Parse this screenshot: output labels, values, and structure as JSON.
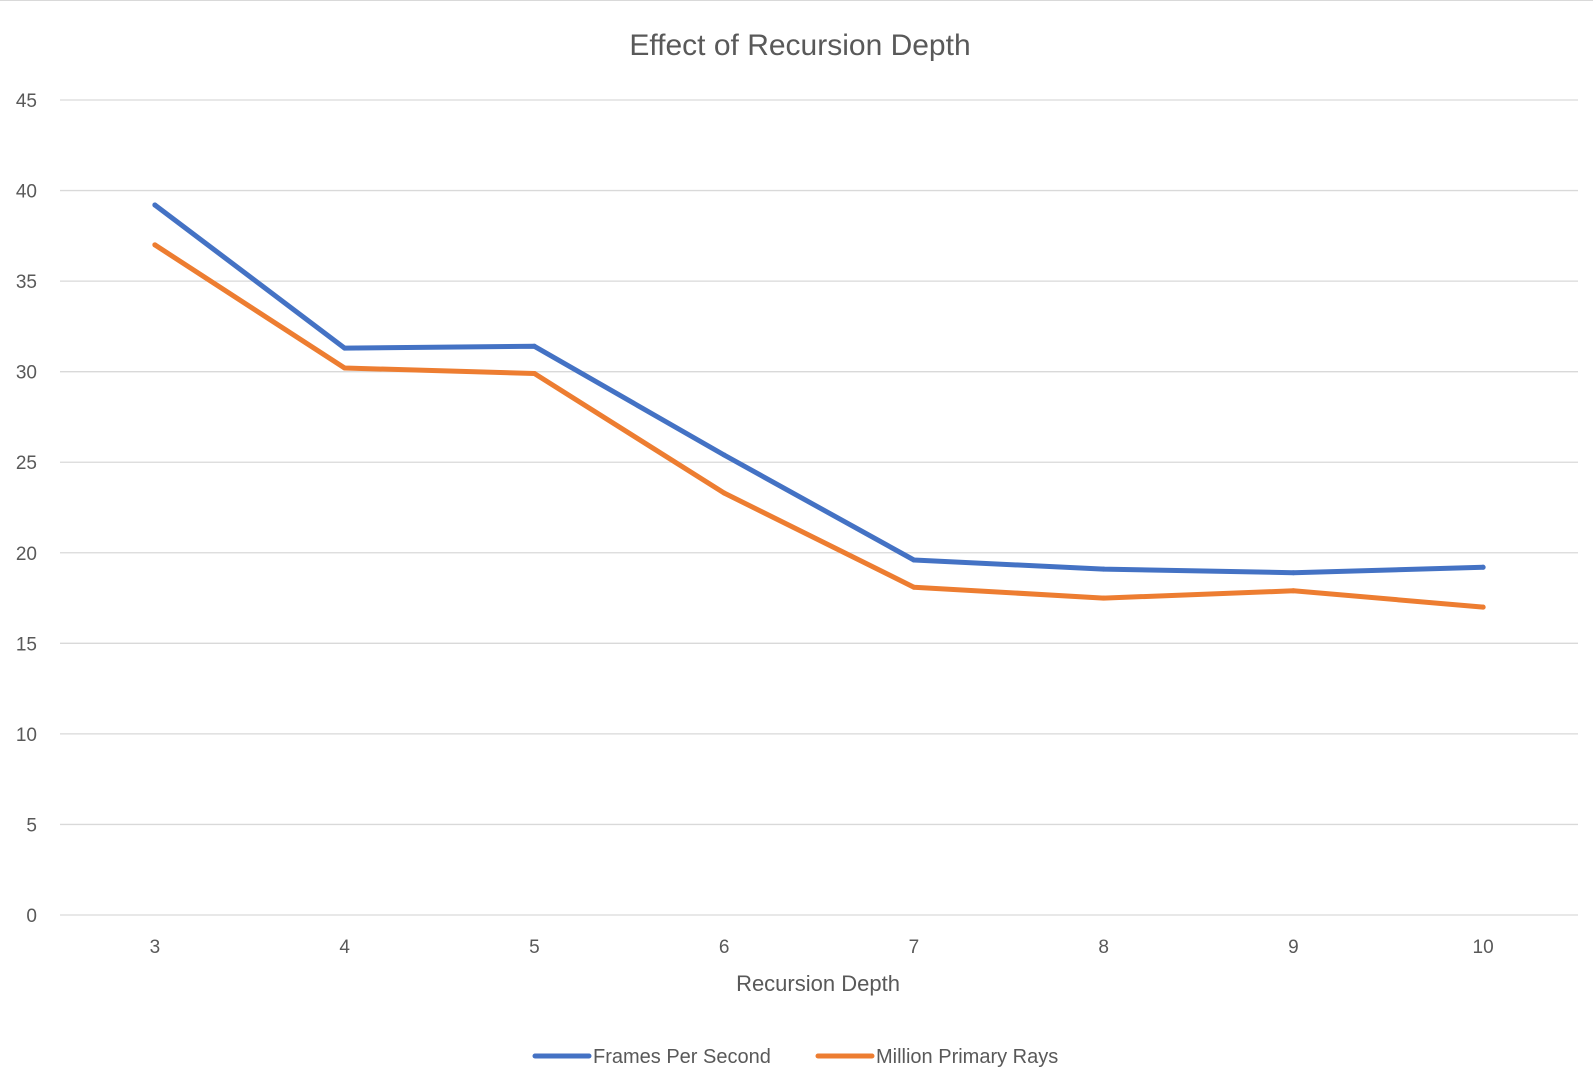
{
  "chart_data": {
    "type": "line",
    "title": "Effect of Recursion Depth",
    "xlabel": "Recursion Depth",
    "ylabel": "",
    "categories": [
      "3",
      "4",
      "5",
      "6",
      "7",
      "8",
      "9",
      "10"
    ],
    "ylim": [
      0,
      45
    ],
    "yticks": [
      "0",
      "5",
      "10",
      "15",
      "20",
      "25",
      "30",
      "35",
      "40",
      "45"
    ],
    "grid": true,
    "legend_position": "bottom",
    "series": [
      {
        "name": "Frames Per Second",
        "color": "#4472C4",
        "values": [
          39.2,
          31.3,
          31.4,
          25.4,
          19.6,
          19.1,
          18.9,
          19.2
        ]
      },
      {
        "name": "Million Primary Rays",
        "color": "#ED7D31",
        "values": [
          37.0,
          30.2,
          29.9,
          23.3,
          18.1,
          17.5,
          17.9,
          17.0
        ]
      }
    ]
  }
}
